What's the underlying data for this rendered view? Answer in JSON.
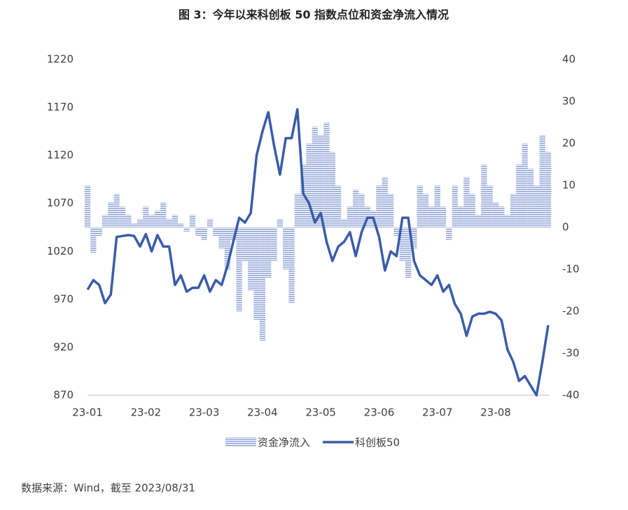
{
  "chart_data": {
    "type": "combo",
    "title": "图 3：今年以来科创板 50 指数点位和资金净流入情况",
    "source": "数据来源：Wind，截至 2023/08/31",
    "categories": [
      "23-01",
      null,
      null,
      null,
      null,
      null,
      null,
      null,
      null,
      null,
      "23-02",
      null,
      null,
      null,
      null,
      null,
      null,
      null,
      null,
      null,
      "23-03",
      null,
      null,
      null,
      null,
      null,
      null,
      null,
      null,
      null,
      "23-04",
      null,
      null,
      null,
      null,
      null,
      null,
      null,
      null,
      null,
      "23-05",
      null,
      null,
      null,
      null,
      null,
      null,
      null,
      null,
      null,
      "23-06",
      null,
      null,
      null,
      null,
      null,
      null,
      null,
      null,
      null,
      "23-07",
      null,
      null,
      null,
      null,
      null,
      null,
      null,
      null,
      null,
      "23-08",
      null,
      null,
      null,
      null,
      null,
      null,
      null,
      null,
      null
    ],
    "series": [
      {
        "name": "资金净流入",
        "type": "bar",
        "axis": "y2",
        "color": "#8fa3d6",
        "values": [
          10,
          -6,
          -2,
          3,
          6,
          8,
          5,
          3,
          1,
          2,
          5,
          3,
          4,
          6,
          2,
          3,
          1,
          -1,
          3,
          -2,
          -3,
          2,
          -2,
          -5,
          -10,
          -3,
          -20,
          -8,
          -15,
          -22,
          -27,
          -12,
          -8,
          2,
          -10,
          -18,
          8,
          15,
          20,
          24,
          22,
          25,
          18,
          10,
          2,
          5,
          9,
          8,
          5,
          4,
          10,
          12,
          8,
          -2,
          -8,
          -12,
          -5,
          10,
          8,
          5,
          10,
          5,
          -3,
          10,
          5,
          12,
          8,
          3,
          15,
          10,
          6,
          5,
          3,
          8,
          15,
          20,
          14,
          10,
          22,
          18
        ]
      },
      {
        "name": "科创板50",
        "type": "line",
        "color": "#3a5ca8",
        "values": [
          980,
          990,
          985,
          966,
          975,
          1035,
          1036,
          1037,
          1036,
          1025,
          1038,
          1020,
          1037,
          1025,
          1025,
          985,
          995,
          978,
          982,
          982,
          995,
          978,
          990,
          985,
          1005,
          1030,
          1055,
          1050,
          1060,
          1120,
          1145,
          1165,
          1130,
          1100,
          1138,
          1138,
          1168,
          1080,
          1070,
          1050,
          1060,
          1030,
          1010,
          1025,
          1030,
          1040,
          1015,
          1040,
          1055,
          1055,
          1035,
          1000,
          1020,
          1015,
          1055,
          1055,
          1010,
          995,
          990,
          985,
          995,
          978,
          985,
          965,
          955,
          932,
          952,
          955,
          955,
          957,
          955,
          948,
          918,
          905,
          885,
          890,
          880,
          870,
          905,
          943
        ]
      }
    ],
    "ylim": [
      870,
      1220
    ],
    "yticks": [
      870,
      920,
      970,
      1020,
      1070,
      1120,
      1170,
      1220
    ],
    "y2lim": [
      -40,
      40
    ],
    "y2ticks": [
      -40,
      -30,
      -20,
      -10,
      0,
      10,
      20,
      30,
      40
    ]
  }
}
